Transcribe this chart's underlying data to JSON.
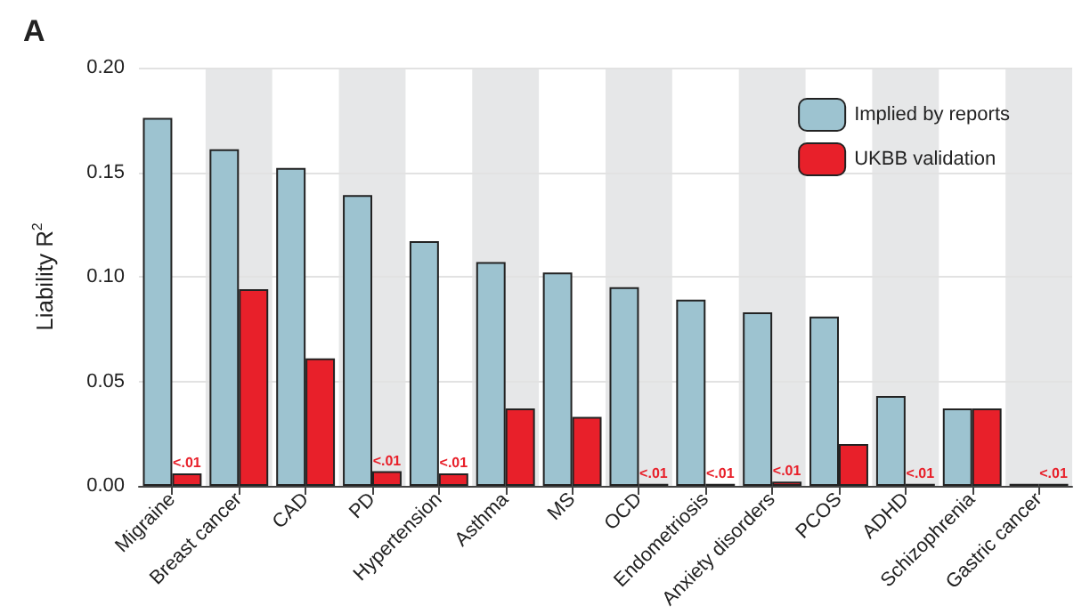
{
  "chart_data": {
    "type": "bar",
    "title": "A",
    "ylabel": "Liability R$^{2}$",
    "categories": [
      "Migraine",
      "Breast cancer",
      "CAD",
      "PD",
      "Hypertension",
      "Asthma",
      "MS",
      "OCD",
      "Endometriosis",
      "Anxiety disorders",
      "PCOS",
      "ADHD",
      "Schizophrenia",
      "Gastric cancer"
    ],
    "series": [
      {
        "name": "Implied by reports",
        "color": "#9dc3d0",
        "values": [
          0.176,
          0.161,
          0.152,
          0.139,
          0.117,
          0.107,
          0.102,
          0.095,
          0.089,
          0.083,
          0.081,
          0.043,
          0.037,
          0.001
        ]
      },
      {
        "name": "UKBB validation",
        "color": "#e8202a",
        "values": [
          0.006,
          0.094,
          0.061,
          0.007,
          0.006,
          0.037,
          0.033,
          0.001,
          0.001,
          0.002,
          0.02,
          0.001,
          0.037,
          0.001
        ],
        "value_labels": [
          "<.01",
          null,
          null,
          "<.01",
          "<.01",
          null,
          null,
          "<.01",
          "<.01",
          "<.01",
          null,
          "<.01",
          null,
          "<.01"
        ]
      }
    ],
    "ylim": [
      0,
      0.2
    ],
    "yticks": [
      {
        "value": 0,
        "label": "0.00"
      },
      0.05,
      {
        "value": 0.1,
        "label": "0.10"
      },
      0.15,
      {
        "value": 0.2,
        "label": "0.20"
      }
    ],
    "grid": "y",
    "legend": "top right",
    "bands": [
      {
        "axis": "x",
        "from": "Breast cancer",
        "to": "Breast cancer",
        "color": "#e6e7e8"
      },
      {
        "axis": "x",
        "from": "PD",
        "to": "PD",
        "color": "#e6e7e8"
      },
      {
        "axis": "x",
        "from": "Asthma",
        "to": "Asthma",
        "color": "#e6e7e8"
      },
      {
        "axis": "x",
        "from": "OCD",
        "to": "OCD",
        "color": "#e6e7e8"
      },
      {
        "axis": "x",
        "from": "Anxiety disorders",
        "to": "Anxiety disorders",
        "color": "#e6e7e8"
      },
      {
        "axis": "x",
        "from": "ADHD",
        "to": "ADHD",
        "color": "#e6e7e8"
      },
      {
        "axis": "x",
        "from": "Gastric cancer",
        "to": "Gastric cancer",
        "color": "#e6e7e8"
      }
    ]
  }
}
